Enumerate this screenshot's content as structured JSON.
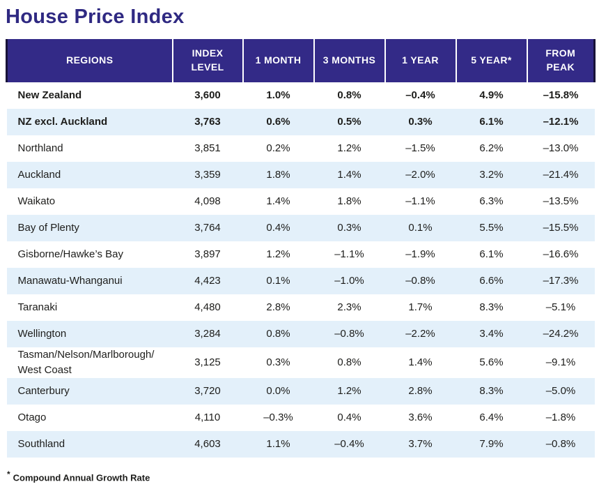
{
  "title": "House Price Index",
  "table": {
    "columns": [
      {
        "label": "REGIONS"
      },
      {
        "label": "INDEX\nLEVEL"
      },
      {
        "label": "1 MONTH"
      },
      {
        "label": "3 MONTHS"
      },
      {
        "label": "1 YEAR"
      },
      {
        "label": "5 YEAR*"
      },
      {
        "label": "FROM\nPEAK"
      }
    ],
    "rows": [
      {
        "bold": true,
        "cells": [
          "New Zealand",
          "3,600",
          "1.0%",
          "0.8%",
          "–0.4%",
          "4.9%",
          "–15.8%"
        ]
      },
      {
        "bold": true,
        "cells": [
          "NZ excl. Auckland",
          "3,763",
          "0.6%",
          "0.5%",
          "0.3%",
          "6.1%",
          "–12.1%"
        ]
      },
      {
        "bold": false,
        "cells": [
          "Northland",
          "3,851",
          "0.2%",
          "1.2%",
          "–1.5%",
          "6.2%",
          "–13.0%"
        ]
      },
      {
        "bold": false,
        "cells": [
          "Auckland",
          "3,359",
          "1.8%",
          "1.4%",
          "–2.0%",
          "3.2%",
          "–21.4%"
        ]
      },
      {
        "bold": false,
        "cells": [
          "Waikato",
          "4,098",
          "1.4%",
          "1.8%",
          "–1.1%",
          "6.3%",
          "–13.5%"
        ]
      },
      {
        "bold": false,
        "cells": [
          "Bay of Plenty",
          "3,764",
          "0.4%",
          "0.3%",
          "0.1%",
          "5.5%",
          "–15.5%"
        ]
      },
      {
        "bold": false,
        "cells": [
          "Gisborne/Hawke’s Bay",
          "3,897",
          "1.2%",
          "–1.1%",
          "–1.9%",
          "6.1%",
          "–16.6%"
        ]
      },
      {
        "bold": false,
        "cells": [
          "Manawatu-Whanganui",
          "4,423",
          "0.1%",
          "–1.0%",
          "–0.8%",
          "6.6%",
          "–17.3%"
        ]
      },
      {
        "bold": false,
        "cells": [
          "Taranaki",
          "4,480",
          "2.8%",
          "2.3%",
          "1.7%",
          "8.3%",
          "–5.1%"
        ]
      },
      {
        "bold": false,
        "cells": [
          "Wellington",
          "3,284",
          "0.8%",
          "–0.8%",
          "–2.2%",
          "3.4%",
          "–24.2%"
        ]
      },
      {
        "bold": false,
        "cells": [
          "Tasman/Nelson/Marlborough/\nWest Coast",
          "3,125",
          "0.3%",
          "0.8%",
          "1.4%",
          "5.6%",
          "–9.1%"
        ]
      },
      {
        "bold": false,
        "cells": [
          "Canterbury",
          "3,720",
          "0.0%",
          "1.2%",
          "2.8%",
          "8.3%",
          "–5.0%"
        ]
      },
      {
        "bold": false,
        "cells": [
          "Otago",
          "4,110",
          "–0.3%",
          "0.4%",
          "3.6%",
          "6.4%",
          "–1.8%"
        ]
      },
      {
        "bold": false,
        "cells": [
          "Southland",
          "4,603",
          "1.1%",
          "–0.4%",
          "3.7%",
          "7.9%",
          "–0.8%"
        ]
      }
    ]
  },
  "footnote": {
    "marker": "*",
    "text": "Compound Annual Growth Rate"
  },
  "colors": {
    "title": "#2f2982",
    "header_bg": "#332a87",
    "header_text": "#ffffff",
    "stripe": "#e3f0fa",
    "body_text": "#1d1d1b"
  },
  "chart_data": {
    "type": "table",
    "title": "House Price Index",
    "columns": [
      "Regions",
      "Index Level",
      "1 Month",
      "3 Months",
      "1 Year",
      "5 Year (Compound Annual Growth Rate)",
      "From Peak"
    ],
    "rows": [
      [
        "New Zealand",
        3600,
        1.0,
        0.8,
        -0.4,
        4.9,
        -15.8
      ],
      [
        "NZ excl. Auckland",
        3763,
        0.6,
        0.5,
        0.3,
        6.1,
        -12.1
      ],
      [
        "Northland",
        3851,
        0.2,
        1.2,
        -1.5,
        6.2,
        -13.0
      ],
      [
        "Auckland",
        3359,
        1.8,
        1.4,
        -2.0,
        3.2,
        -21.4
      ],
      [
        "Waikato",
        4098,
        1.4,
        1.8,
        -1.1,
        6.3,
        -13.5
      ],
      [
        "Bay of Plenty",
        3764,
        0.4,
        0.3,
        0.1,
        5.5,
        -15.5
      ],
      [
        "Gisborne/Hawke’s Bay",
        3897,
        1.2,
        -1.1,
        -1.9,
        6.1,
        -16.6
      ],
      [
        "Manawatu-Whanganui",
        4423,
        0.1,
        -1.0,
        -0.8,
        6.6,
        -17.3
      ],
      [
        "Taranaki",
        4480,
        2.8,
        2.3,
        1.7,
        8.3,
        -5.1
      ],
      [
        "Wellington",
        3284,
        0.8,
        -0.8,
        -2.2,
        3.4,
        -24.2
      ],
      [
        "Tasman/Nelson/Marlborough/West Coast",
        3125,
        0.3,
        0.8,
        1.4,
        5.6,
        -9.1
      ],
      [
        "Canterbury",
        3720,
        0.0,
        1.2,
        2.8,
        8.3,
        -5.0
      ],
      [
        "Otago",
        4110,
        -0.3,
        0.4,
        3.6,
        6.4,
        -1.8
      ],
      [
        "Southland",
        4603,
        1.1,
        -0.4,
        3.7,
        7.9,
        -0.8
      ]
    ],
    "units": "percent change except Index Level"
  }
}
